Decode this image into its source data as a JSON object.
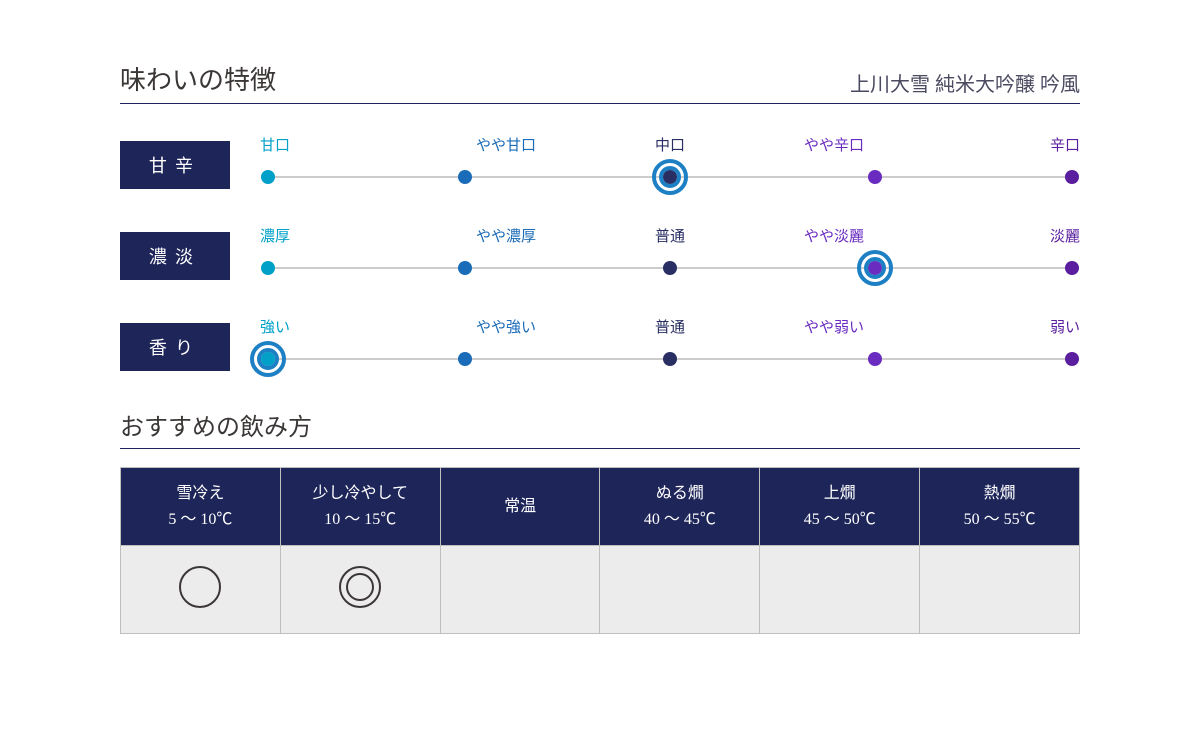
{
  "colors": {
    "navy": "#1d2559",
    "navy_line": "#1d2559",
    "title_text": "#3b3736",
    "subtitle": "#4a4a60",
    "scale_line": "#9a9a9a",
    "cyan": "#00a0c8",
    "blue": "#1a6bb8",
    "dark_navy": "#2a2f63",
    "purple": "#6a2cc0",
    "deep_purple": "#5a1e9e",
    "ring_blue": "#1d7fc4",
    "table_border": "#bfbfbf",
    "table_head": "#1d2559",
    "table_body": "#ececec",
    "mark": "#3b3736"
  },
  "section1": {
    "title": "味わいの特徴",
    "subtitle": "上川大雪 純米大吟醸 吟風",
    "rows": [
      {
        "label": "甘辛",
        "scale": [
          "甘口",
          "やや甘口",
          "中口",
          "やや辛口",
          "辛口"
        ],
        "selected_index": 2
      },
      {
        "label": "濃淡",
        "scale": [
          "濃厚",
          "やや濃厚",
          "普通",
          "やや淡麗",
          "淡麗"
        ],
        "selected_index": 3
      },
      {
        "label": "香り",
        "scale": [
          "強い",
          "やや強い",
          "普通",
          "やや弱い",
          "弱い"
        ],
        "selected_index": 0
      }
    ],
    "label_colors": [
      "cyan",
      "blue",
      "dark_navy",
      "purple",
      "deep_purple"
    ],
    "dot_colors": [
      "cyan",
      "blue",
      "dark_navy",
      "purple",
      "deep_purple"
    ],
    "ring_outer_d": 36,
    "ring_inner_d": 22,
    "ring_border_w": 4,
    "dot_d": 14,
    "label_fontsize": 15,
    "row_label_fontsize": 18,
    "title_fontsize": 26,
    "subtitle_fontsize": 20
  },
  "section2": {
    "title": "おすすめの飲み方",
    "columns": [
      {
        "name": "雪冷え",
        "range": "5 ～ 10℃"
      },
      {
        "name": "少し冷やして",
        "range": "10 ～ 15℃"
      },
      {
        "name": "常温",
        "range": ""
      },
      {
        "name": "ぬる燗",
        "range": "40 ～ 45℃"
      },
      {
        "name": "上燗",
        "range": "45 ～ 50℃"
      },
      {
        "name": "熱燗",
        "range": "50 ～ 55℃"
      }
    ],
    "marks": [
      "single",
      "double",
      "",
      "",
      "",
      ""
    ],
    "header_fontsize": 16,
    "title_fontsize": 24,
    "mark_diameter": 42,
    "mark_border_w": 2
  }
}
